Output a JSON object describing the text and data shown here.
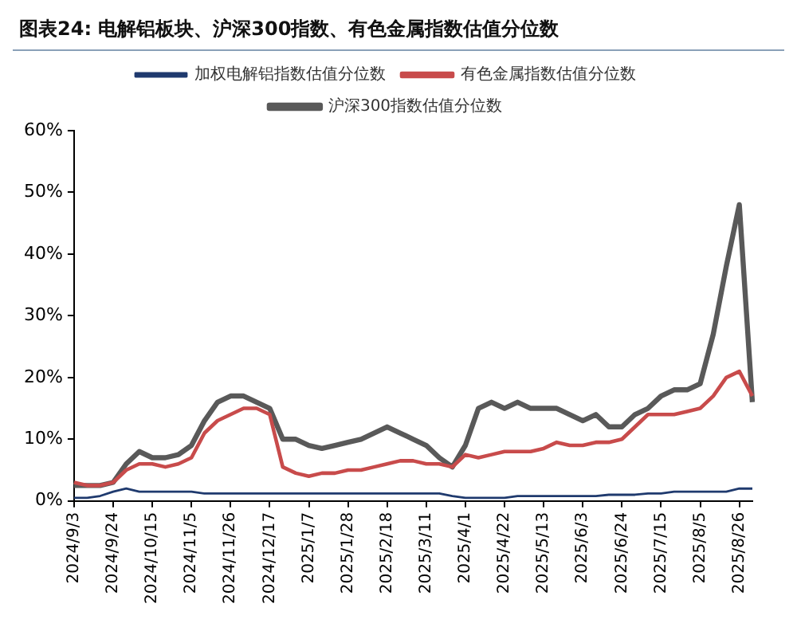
{
  "chart_data": {
    "type": "line",
    "title": "图表24:  电解铝板块、沪深300指数、有色金属指数估值分位数",
    "categories": [
      "2024/9/3",
      null,
      null,
      "2024/9/24",
      null,
      null,
      "2024/10/15",
      null,
      null,
      "2024/11/5",
      null,
      null,
      "2024/11/26",
      null,
      null,
      "2024/12/17",
      null,
      null,
      "2025/1/7",
      null,
      null,
      "2025/1/28",
      null,
      null,
      "2025/2/18",
      null,
      null,
      "2025/3/11",
      null,
      null,
      "2025/4/1",
      null,
      null,
      "2025/4/22",
      null,
      null,
      "2025/5/13",
      null,
      null,
      "2025/6/3",
      null,
      null,
      "2025/6/24",
      null,
      null,
      "2025/7/15",
      null,
      null,
      "2025/8/5",
      null,
      null,
      "2025/8/26",
      null
    ],
    "series": [
      {
        "name": "加权电解铝指数估值分位数",
        "color": "#1f3a6e",
        "values": [
          0.5,
          0.5,
          0.8,
          1.5,
          2,
          1.5,
          1.5,
          1.5,
          1.5,
          1.5,
          1.2,
          1.2,
          1.2,
          1.2,
          1.2,
          1.2,
          1.2,
          1.2,
          1.2,
          1.2,
          1.2,
          1.2,
          1.2,
          1.2,
          1.2,
          1.2,
          1.2,
          1.2,
          1.2,
          0.8,
          0.5,
          0.5,
          0.5,
          0.5,
          0.8,
          0.8,
          0.8,
          0.8,
          0.8,
          0.8,
          0.8,
          1,
          1,
          1,
          1.2,
          1.2,
          1.5,
          1.5,
          1.5,
          1.5,
          1.5,
          2,
          2
        ]
      },
      {
        "name": "有色金属指数估值分位数",
        "color": "#c84b4b",
        "values": [
          3,
          2.5,
          2.5,
          3,
          5,
          6,
          6,
          5.5,
          6,
          7,
          11,
          13,
          14,
          15,
          15,
          14,
          5.5,
          4.5,
          4,
          4.5,
          4.5,
          5,
          5,
          5.5,
          6,
          6.5,
          6.5,
          6,
          6,
          5.5,
          7.5,
          7,
          7.5,
          8,
          8,
          8,
          8.5,
          9.5,
          9,
          9,
          9.5,
          9.5,
          10,
          12,
          14,
          14,
          14,
          14.5,
          15,
          17,
          20,
          21,
          17
        ]
      },
      {
        "name": "沪深300指数估值分位数",
        "color": "#595959",
        "values": [
          2.5,
          2.5,
          2.5,
          3,
          6,
          8,
          7,
          7,
          7.5,
          9,
          13,
          16,
          17,
          17,
          16,
          15,
          10,
          10,
          9,
          8.5,
          9,
          9.5,
          10,
          11,
          12,
          11,
          10,
          9,
          7,
          5.5,
          9,
          15,
          16,
          15,
          16,
          15,
          15,
          15,
          14,
          13,
          14,
          12,
          12,
          14,
          15,
          17,
          18,
          18,
          19,
          27,
          38,
          48,
          16
        ]
      }
    ],
    "ylim": [
      0,
      60
    ],
    "yticks": [
      {
        "value": 0,
        "label": "0%"
      },
      {
        "value": 10,
        "label": "10%"
      },
      {
        "value": 20,
        "label": "20%"
      },
      {
        "value": 30,
        "label": "30%"
      },
      {
        "value": 40,
        "label": "40%"
      },
      {
        "value": 50,
        "label": "50%"
      },
      {
        "value": 60,
        "label": "60%"
      }
    ],
    "grid": false,
    "legend": "top",
    "marker": "none",
    "line_style": "solid"
  }
}
